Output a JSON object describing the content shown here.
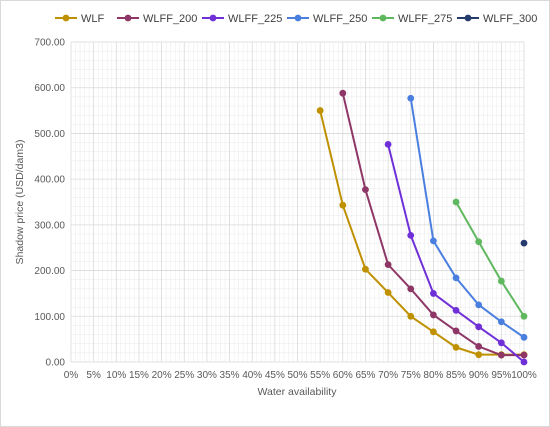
{
  "chart_data": {
    "type": "line",
    "xlabel": "Water availability",
    "ylabel": "Shadow price (USD/dam3)",
    "xlim": [
      0,
      100
    ],
    "ylim": [
      0,
      700
    ],
    "x_ticks": [
      0,
      5,
      10,
      15,
      20,
      25,
      30,
      35,
      40,
      45,
      50,
      55,
      60,
      65,
      70,
      75,
      80,
      85,
      90,
      95,
      100
    ],
    "x_tick_labels": [
      "0%",
      "5%",
      "10%",
      "15%",
      "20%",
      "25%",
      "30%",
      "35%",
      "40%",
      "45%",
      "50%",
      "55%",
      "60%",
      "65%",
      "70%",
      "75%",
      "80%",
      "85%",
      "90%",
      "95%",
      "100%"
    ],
    "y_ticks": [
      0,
      100,
      200,
      300,
      400,
      500,
      600,
      700
    ],
    "y_tick_labels": [
      "0.00",
      "100.00",
      "200.00",
      "300.00",
      "400.00",
      "500.00",
      "600.00",
      "700.00"
    ],
    "grid": true,
    "legend_position": "top",
    "series": [
      {
        "name": "WLF",
        "color": "#bf9000",
        "points": [
          [
            55,
            550
          ],
          [
            60,
            343
          ],
          [
            65,
            203
          ],
          [
            70,
            152
          ],
          [
            75,
            100
          ],
          [
            80,
            66
          ],
          [
            85,
            32
          ],
          [
            90,
            16
          ],
          [
            95,
            16
          ],
          [
            100,
            16
          ]
        ]
      },
      {
        "name": "WLFF_200",
        "color": "#8e3766",
        "points": [
          [
            60,
            588
          ],
          [
            65,
            377
          ],
          [
            70,
            213
          ],
          [
            75,
            160
          ],
          [
            80,
            103
          ],
          [
            85,
            68
          ],
          [
            90,
            34
          ],
          [
            95,
            15
          ],
          [
            100,
            15
          ]
        ]
      },
      {
        "name": "WLFF_225",
        "color": "#7030d8",
        "points": [
          [
            70,
            476
          ],
          [
            75,
            277
          ],
          [
            80,
            150
          ],
          [
            85,
            113
          ],
          [
            90,
            77
          ],
          [
            95,
            42
          ],
          [
            100,
            0
          ]
        ]
      },
      {
        "name": "WLFF_250",
        "color": "#4a7fe0",
        "points": [
          [
            75,
            577
          ],
          [
            80,
            265
          ],
          [
            85,
            184
          ],
          [
            90,
            125
          ],
          [
            95,
            88
          ],
          [
            100,
            54
          ]
        ]
      },
      {
        "name": "WLFF_275",
        "color": "#5fb85f",
        "points": [
          [
            85,
            350
          ],
          [
            90,
            263
          ],
          [
            95,
            177
          ],
          [
            100,
            100
          ]
        ]
      },
      {
        "name": "WLFF_300",
        "color": "#263b6e",
        "points": [
          [
            100,
            260
          ]
        ]
      }
    ]
  }
}
